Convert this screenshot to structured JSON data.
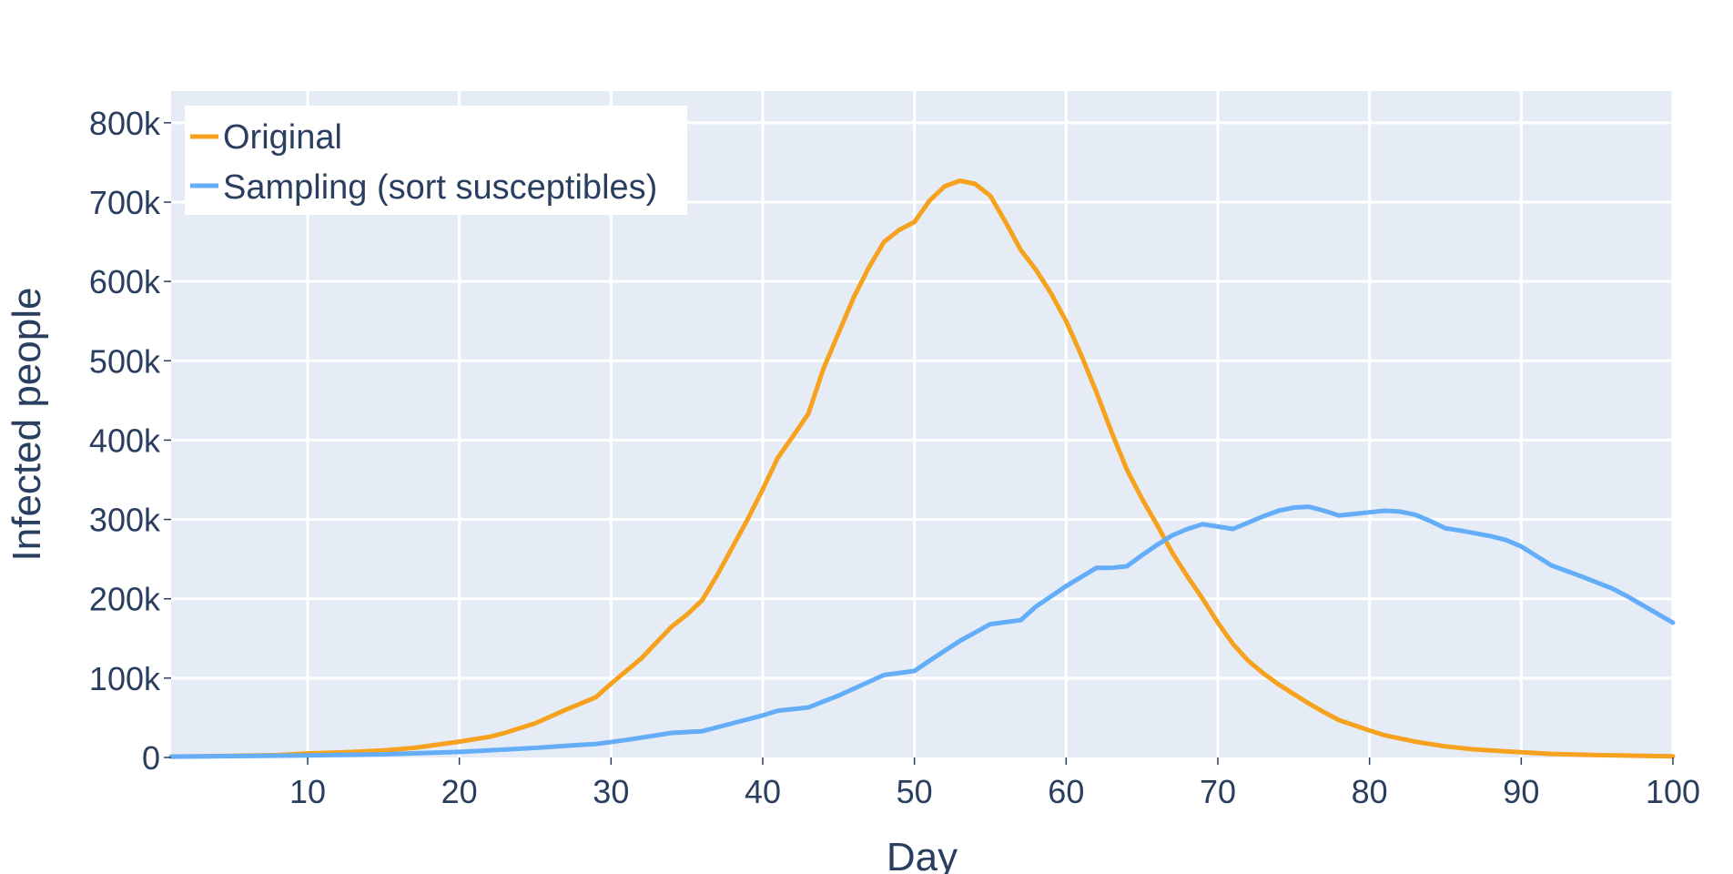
{
  "chart_data": {
    "type": "line",
    "xlabel": "Day",
    "ylabel": "Infected people",
    "xlim": [
      1,
      100
    ],
    "ylim": [
      0,
      840000
    ],
    "xticks": [
      10,
      20,
      30,
      40,
      50,
      60,
      70,
      80,
      90,
      100
    ],
    "xtick_labels": [
      "10",
      "20",
      "30",
      "40",
      "50",
      "60",
      "70",
      "80",
      "90",
      "100"
    ],
    "yticks": [
      0,
      100000,
      200000,
      300000,
      400000,
      500000,
      600000,
      700000,
      800000
    ],
    "ytick_labels": [
      "0",
      "100k",
      "200k",
      "300k",
      "400k",
      "500k",
      "600k",
      "700k",
      "800k"
    ],
    "grid": true,
    "legend": "top-left",
    "plot_bg": "#e5ecf6",
    "series": [
      {
        "name": "Original",
        "color": "#f6a21e",
        "points": [
          [
            1,
            1000
          ],
          [
            5,
            2000
          ],
          [
            8,
            3000
          ],
          [
            10,
            5000
          ],
          [
            13,
            7000
          ],
          [
            15,
            9000
          ],
          [
            17,
            12000
          ],
          [
            20,
            20000
          ],
          [
            22,
            26000
          ],
          [
            23,
            31000
          ],
          [
            25,
            43000
          ],
          [
            27,
            60000
          ],
          [
            29,
            76000
          ],
          [
            30,
            93000
          ],
          [
            32,
            125000
          ],
          [
            33,
            145000
          ],
          [
            34,
            165000
          ],
          [
            35,
            180000
          ],
          [
            36,
            198000
          ],
          [
            37,
            230000
          ],
          [
            38,
            265000
          ],
          [
            39,
            300000
          ],
          [
            40,
            338000
          ],
          [
            41,
            378000
          ],
          [
            42,
            405000
          ],
          [
            43,
            433000
          ],
          [
            44,
            490000
          ],
          [
            45,
            535000
          ],
          [
            46,
            580000
          ],
          [
            47,
            618000
          ],
          [
            48,
            650000
          ],
          [
            49,
            665000
          ],
          [
            50,
            675000
          ],
          [
            51,
            702000
          ],
          [
            52,
            720000
          ],
          [
            53,
            727000
          ],
          [
            54,
            723000
          ],
          [
            55,
            708000
          ],
          [
            56,
            675000
          ],
          [
            57,
            640000
          ],
          [
            58,
            615000
          ],
          [
            59,
            585000
          ],
          [
            60,
            550000
          ],
          [
            61,
            507000
          ],
          [
            62,
            460000
          ],
          [
            63,
            410000
          ],
          [
            64,
            363000
          ],
          [
            65,
            326000
          ],
          [
            66,
            293000
          ],
          [
            67,
            258000
          ],
          [
            68,
            228000
          ],
          [
            69,
            200000
          ],
          [
            70,
            170000
          ],
          [
            71,
            143000
          ],
          [
            72,
            122000
          ],
          [
            73,
            106000
          ],
          [
            74,
            92000
          ],
          [
            75,
            80000
          ],
          [
            76,
            68000
          ],
          [
            77,
            57000
          ],
          [
            78,
            47000
          ],
          [
            80,
            34000
          ],
          [
            81,
            28000
          ],
          [
            83,
            20000
          ],
          [
            85,
            14000
          ],
          [
            87,
            10000
          ],
          [
            90,
            6500
          ],
          [
            92,
            4500
          ],
          [
            95,
            3000
          ],
          [
            100,
            1500
          ]
        ]
      },
      {
        "name": "Sampling (sort susceptibles)",
        "color": "#63adf9",
        "points": [
          [
            1,
            1000
          ],
          [
            10,
            2500
          ],
          [
            15,
            4000
          ],
          [
            20,
            7000
          ],
          [
            25,
            12000
          ],
          [
            28,
            16000
          ],
          [
            29,
            17000
          ],
          [
            31,
            22000
          ],
          [
            34,
            31000
          ],
          [
            36,
            33000
          ],
          [
            38,
            43000
          ],
          [
            40,
            53000
          ],
          [
            41,
            59000
          ],
          [
            43,
            63000
          ],
          [
            45,
            78000
          ],
          [
            48,
            104000
          ],
          [
            50,
            109000
          ],
          [
            51,
            122000
          ],
          [
            53,
            147000
          ],
          [
            55,
            168000
          ],
          [
            57,
            173000
          ],
          [
            58,
            190000
          ],
          [
            60,
            216000
          ],
          [
            62,
            239000
          ],
          [
            63,
            239000
          ],
          [
            64,
            241000
          ],
          [
            65,
            255000
          ],
          [
            66,
            268000
          ],
          [
            67,
            280000
          ],
          [
            68,
            288000
          ],
          [
            69,
            294000
          ],
          [
            70,
            291000
          ],
          [
            71,
            288000
          ],
          [
            72,
            296000
          ],
          [
            73,
            304000
          ],
          [
            74,
            311000
          ],
          [
            75,
            315000
          ],
          [
            76,
            316000
          ],
          [
            77,
            311000
          ],
          [
            78,
            305000
          ],
          [
            79,
            307000
          ],
          [
            80,
            309000
          ],
          [
            81,
            311000
          ],
          [
            82,
            310000
          ],
          [
            83,
            306000
          ],
          [
            84,
            298000
          ],
          [
            85,
            289000
          ],
          [
            86,
            286000
          ],
          [
            88,
            279000
          ],
          [
            89,
            274000
          ],
          [
            90,
            266000
          ],
          [
            92,
            242000
          ],
          [
            94,
            228000
          ],
          [
            96,
            213000
          ],
          [
            97,
            203000
          ],
          [
            99,
            181000
          ],
          [
            100,
            170000
          ]
        ]
      }
    ]
  }
}
